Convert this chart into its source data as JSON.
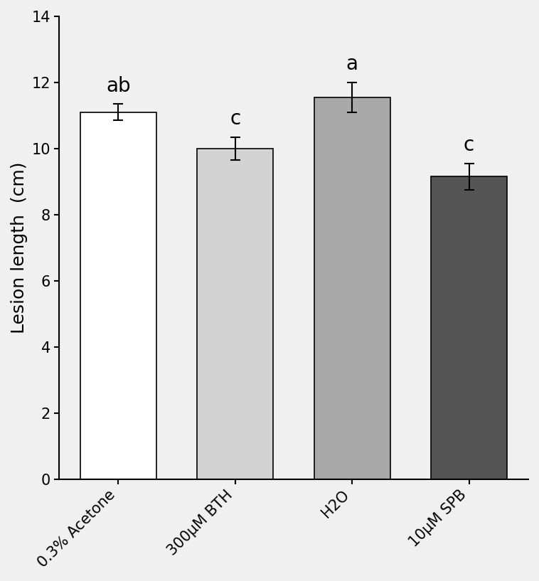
{
  "categories": [
    "0.3% Acetone",
    "300μM BTH",
    "H2O",
    "10μM SPB"
  ],
  "values": [
    11.1,
    10.0,
    11.55,
    9.15
  ],
  "errors": [
    0.25,
    0.35,
    0.45,
    0.4
  ],
  "bar_colors": [
    "#ffffff",
    "#d3d3d3",
    "#a9a9a9",
    "#555555"
  ],
  "bar_edgecolor": "#000000",
  "labels": [
    "ab",
    "c",
    "a",
    "c"
  ],
  "ylabel": "Lesion length  (cm)",
  "ylim": [
    0,
    14
  ],
  "yticks": [
    0,
    2,
    4,
    6,
    8,
    10,
    12,
    14
  ],
  "background_color": "#f0f0f0",
  "label_fontsize": 18,
  "tick_fontsize": 15,
  "ylabel_fontsize": 18,
  "sig_label_fontsize": 20
}
